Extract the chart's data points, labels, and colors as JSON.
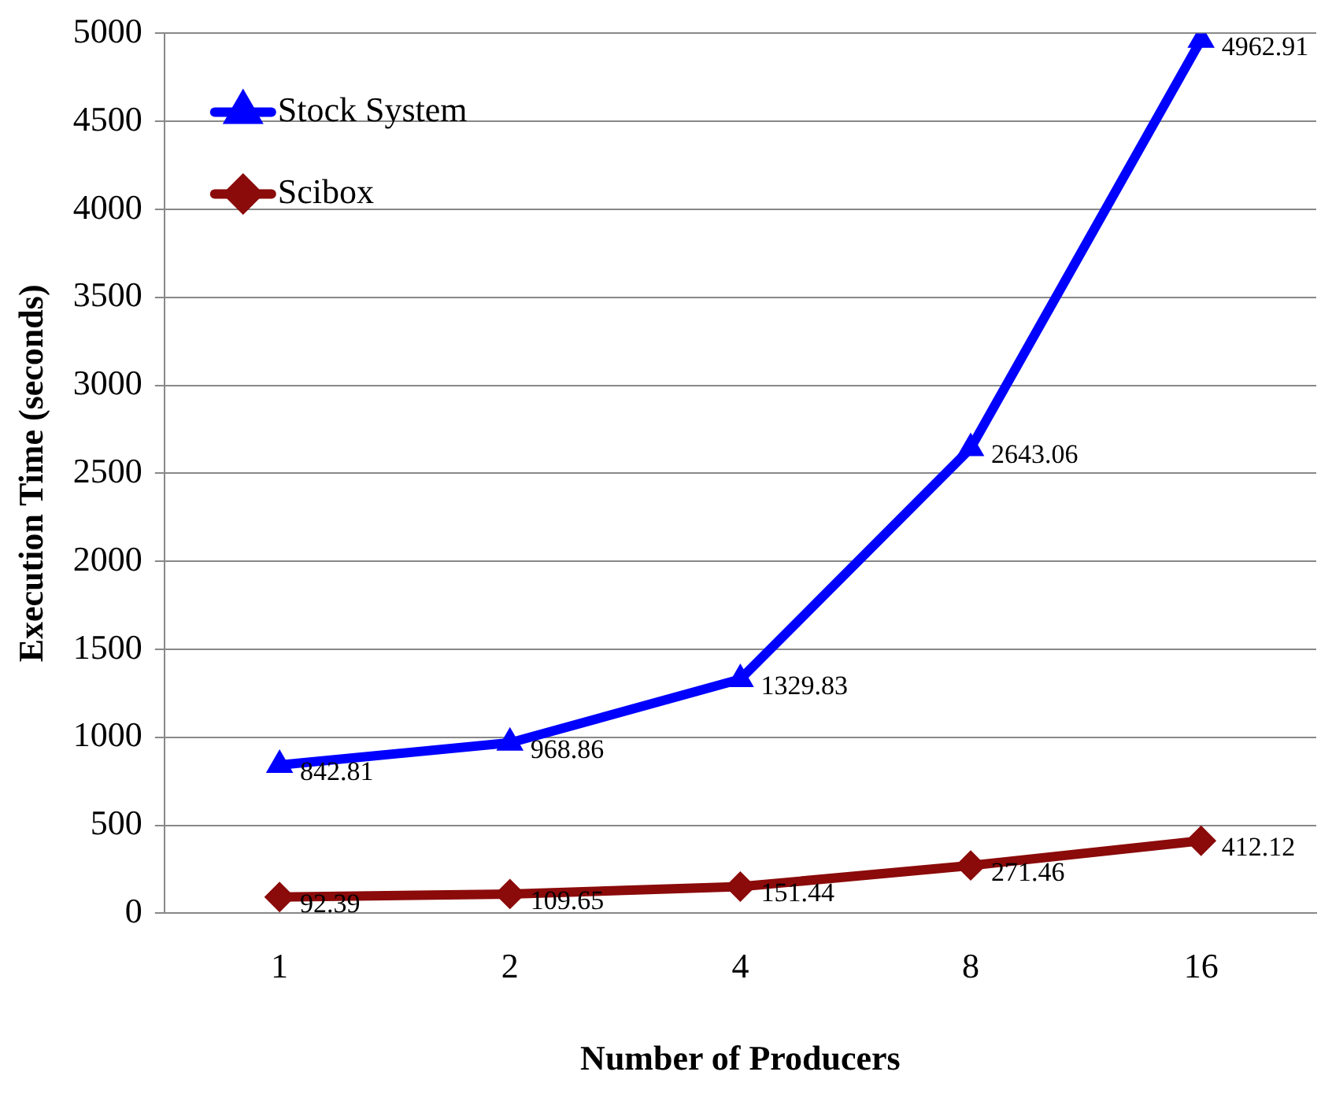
{
  "chart_data": {
    "type": "line",
    "xlabel": "Number of Producers",
    "ylabel": "Execution Time (seconds)",
    "categories": [
      "1",
      "2",
      "4",
      "8",
      "16"
    ],
    "series": [
      {
        "name": "Stock System",
        "color": "#0000ff",
        "marker": "triangle",
        "values": [
          842.81,
          968.86,
          1329.83,
          2643.06,
          4962.91
        ]
      },
      {
        "name": "Scibox",
        "color": "#8b0a0a",
        "marker": "diamond",
        "values": [
          92.39,
          109.65,
          151.44,
          271.46,
          412.12
        ]
      }
    ],
    "ylim": [
      0,
      5000
    ],
    "yticks": [
      0,
      500,
      1000,
      1500,
      2000,
      2500,
      3000,
      3500,
      4000,
      4500,
      5000
    ],
    "grid": "y",
    "legend": "top left",
    "data_labels": true
  }
}
